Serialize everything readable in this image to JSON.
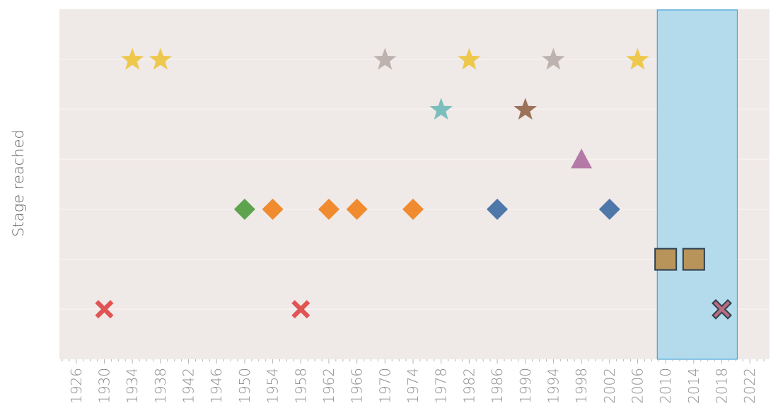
{
  "chart_data": {
    "type": "scatter",
    "ylabel": "Stage reached",
    "xlabel": "",
    "x_ticks": [
      "1926",
      "1930",
      "1934",
      "1938",
      "1942",
      "1946",
      "1950",
      "1954",
      "1958",
      "1962",
      "1966",
      "1970",
      "1974",
      "1978",
      "1982",
      "1986",
      "1990",
      "1994",
      "1998",
      "2002",
      "2006",
      "2010",
      "2014",
      "2018",
      "2022"
    ],
    "xlim": [
      1923.6,
      2024.8
    ],
    "ylim": [
      0,
      7
    ],
    "grid": true,
    "highlight_range": [
      2008.8,
      2020.2
    ],
    "colors": {
      "background": "#efe9e7",
      "grid": "#f7f2f1",
      "highlight": "#b4dbeb",
      "highlight_border": "#2a9ad6"
    },
    "points": [
      {
        "x": 1934,
        "y": 6,
        "marker": "star",
        "color": "#eec84c"
      },
      {
        "x": 1938,
        "y": 6,
        "marker": "star",
        "color": "#eec84c"
      },
      {
        "x": 1970,
        "y": 6,
        "marker": "star",
        "color": "#bdb2ae"
      },
      {
        "x": 1982,
        "y": 6,
        "marker": "star",
        "color": "#eec84c"
      },
      {
        "x": 1994,
        "y": 6,
        "marker": "star",
        "color": "#bdb2ae"
      },
      {
        "x": 2006,
        "y": 6,
        "marker": "star",
        "color": "#eec84c"
      },
      {
        "x": 1978,
        "y": 5,
        "marker": "star",
        "color": "#7abfbb"
      },
      {
        "x": 1990,
        "y": 5,
        "marker": "star",
        "color": "#9c7259"
      },
      {
        "x": 1998,
        "y": 4,
        "marker": "triangle",
        "color": "#b579a8"
      },
      {
        "x": 1950,
        "y": 3,
        "marker": "diamond",
        "color": "#5ea34e"
      },
      {
        "x": 1954,
        "y": 3,
        "marker": "diamond",
        "color": "#f08b2f"
      },
      {
        "x": 1962,
        "y": 3,
        "marker": "diamond",
        "color": "#f08b2f"
      },
      {
        "x": 1966,
        "y": 3,
        "marker": "diamond",
        "color": "#f08b2f"
      },
      {
        "x": 1974,
        "y": 3,
        "marker": "diamond",
        "color": "#f08b2f"
      },
      {
        "x": 1986,
        "y": 3,
        "marker": "diamond",
        "color": "#4f78aa"
      },
      {
        "x": 2002,
        "y": 3,
        "marker": "diamond",
        "color": "#4f78aa"
      },
      {
        "x": 2010,
        "y": 2,
        "marker": "square",
        "color": "#b8945a",
        "outline": "#2d4150"
      },
      {
        "x": 2014,
        "y": 2,
        "marker": "square",
        "color": "#b8945a",
        "outline": "#2d4150"
      },
      {
        "x": 1930,
        "y": 1,
        "marker": "cross",
        "color": "#e15454"
      },
      {
        "x": 1958,
        "y": 1,
        "marker": "cross",
        "color": "#e15454"
      },
      {
        "x": 2018,
        "y": 1,
        "marker": "cross",
        "color": "#b86c80",
        "outline": "#2d4150"
      }
    ]
  }
}
